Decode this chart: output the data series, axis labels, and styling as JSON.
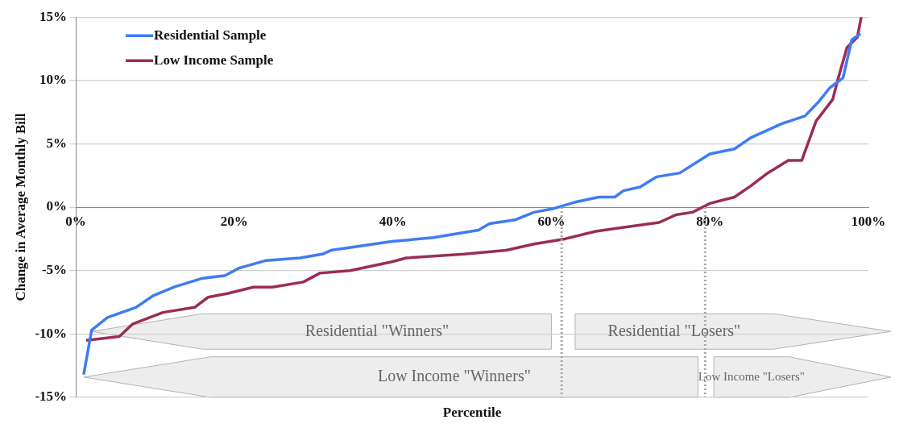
{
  "chart_data": {
    "type": "line",
    "xlabel": "Percentile",
    "ylabel": "Change in Average Monthly Bill",
    "xlim": [
      0,
      100
    ],
    "ylim": [
      -15,
      15
    ],
    "xticks": [
      {
        "value": 0,
        "label": "0%"
      },
      {
        "value": 20,
        "label": "20%"
      },
      {
        "value": 40,
        "label": "40%"
      },
      {
        "value": 60,
        "label": "60%"
      },
      {
        "value": 80,
        "label": "80%"
      },
      {
        "value": 100,
        "label": "100%"
      }
    ],
    "yticks": [
      {
        "value": -15,
        "label": "-15%"
      },
      {
        "value": -10,
        "label": "-10%"
      },
      {
        "value": -5,
        "label": "-5%"
      },
      {
        "value": 0,
        "label": "0%"
      },
      {
        "value": 5,
        "label": "5%"
      },
      {
        "value": 10,
        "label": "10%"
      },
      {
        "value": 15,
        "label": "15%"
      }
    ],
    "grid": "y",
    "legend": "top left",
    "marker": "none",
    "line_style": "solid",
    "series": [
      {
        "name": "Residential Sample",
        "color": "#3e7cf5",
        "x": [
          1,
          2,
          4,
          7.6,
          9.7,
          12.4,
          16,
          18.8,
          20.6,
          24,
          28.3,
          31.1,
          32.2,
          39.9,
          45.1,
          50.8,
          52.2,
          55.4,
          57.8,
          60.3,
          63,
          66,
          68,
          69.1,
          71.2,
          73.3,
          76.2,
          80,
          83.1,
          85.2,
          89.1,
          92,
          93.7,
          95.1,
          96.8,
          97.9,
          99
        ],
        "values": [
          -13.2,
          -9.7,
          -8.7,
          -7.9,
          -7,
          -6.3,
          -5.6,
          -5.4,
          -4.8,
          -4.2,
          -4,
          -3.7,
          -3.4,
          -2.7,
          -2.4,
          -1.8,
          -1.3,
          -1,
          -0.4,
          -0.1,
          0.4,
          0.8,
          0.8,
          1.3,
          1.6,
          2.4,
          2.7,
          4.2,
          4.6,
          5.5,
          6.6,
          7.2,
          8.3,
          9.4,
          10.2,
          13.2,
          13.7
        ]
      },
      {
        "name": "Low Income Sample",
        "color": "#9b2c5a",
        "x": [
          1.3,
          5.5,
          7.2,
          11,
          15,
          16.7,
          19.2,
          22.4,
          24.8,
          28.7,
          30.8,
          34.6,
          39.9,
          41.7,
          49,
          54.3,
          57.8,
          61.7,
          65.6,
          70.1,
          73.6,
          75.7,
          77.8,
          80,
          83.1,
          85.2,
          87.3,
          89.9,
          91.6,
          93.4,
          95.5,
          96.2,
          97.3,
          98.6,
          99.1
        ],
        "values": [
          -10.5,
          -10.2,
          -9.2,
          -8.3,
          -7.9,
          -7.1,
          -6.8,
          -6.3,
          -6.3,
          -5.9,
          -5.2,
          -5,
          -4.3,
          -4,
          -3.7,
          -3.4,
          -2.9,
          -2.5,
          -1.9,
          -1.5,
          -1.2,
          -0.6,
          -0.4,
          0.3,
          0.8,
          1.7,
          2.7,
          3.7,
          3.7,
          6.8,
          8.5,
          10.2,
          12.6,
          13.4,
          15
        ]
      }
    ],
    "ref_lines": [
      {
        "axis": "x",
        "value": 61.3,
        "color": "#a6a6a6",
        "line_style": "dotted"
      },
      {
        "axis": "x",
        "value": 79.4,
        "color": "#a6a6a6",
        "line_style": "dotted"
      }
    ],
    "annotations": [
      "Residential \"Winners\"",
      "Residential \"Losers\"",
      "Low Income \"Winners\"",
      "Low Income \"Losers\""
    ]
  }
}
